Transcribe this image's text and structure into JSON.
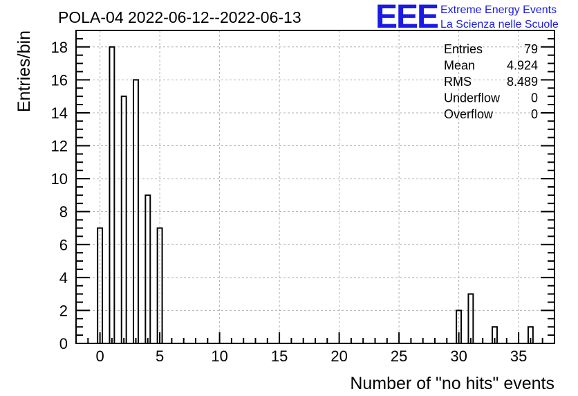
{
  "chart_data": {
    "type": "bar",
    "title": "POLA-04 2022-06-12--2022-06-13",
    "xlabel": "Number of \"no hits\" events",
    "ylabel": "Entries/bin",
    "xlim": [
      -2,
      38
    ],
    "ylim": [
      0,
      19
    ],
    "grid": true,
    "bin_width": 1,
    "bins": [
      {
        "x": 0,
        "value": 7
      },
      {
        "x": 1,
        "value": 18
      },
      {
        "x": 2,
        "value": 15
      },
      {
        "x": 3,
        "value": 16
      },
      {
        "x": 4,
        "value": 9
      },
      {
        "x": 5,
        "value": 7
      },
      {
        "x": 30,
        "value": 2
      },
      {
        "x": 31,
        "value": 3
      },
      {
        "x": 33,
        "value": 1
      },
      {
        "x": 36,
        "value": 1
      }
    ],
    "x_ticks": [
      0,
      5,
      10,
      15,
      20,
      25,
      30,
      35
    ],
    "y_ticks": [
      0,
      2,
      4,
      6,
      8,
      10,
      12,
      14,
      16,
      18
    ]
  },
  "stats": [
    {
      "label": "Entries",
      "value": "79"
    },
    {
      "label": "Mean",
      "value": "4.924"
    },
    {
      "label": "RMS",
      "value": "8.489"
    },
    {
      "label": "Underflow",
      "value": "0"
    },
    {
      "label": "Overflow",
      "value": "0"
    }
  ],
  "logo": {
    "mark": "EEE",
    "line1": "Extreme Energy Events",
    "line2": "La Scienza nelle Scuole"
  },
  "colors": {
    "bar_stroke": "#000000",
    "grid": "#b0b0b0",
    "logo": "#1a1ae6"
  }
}
